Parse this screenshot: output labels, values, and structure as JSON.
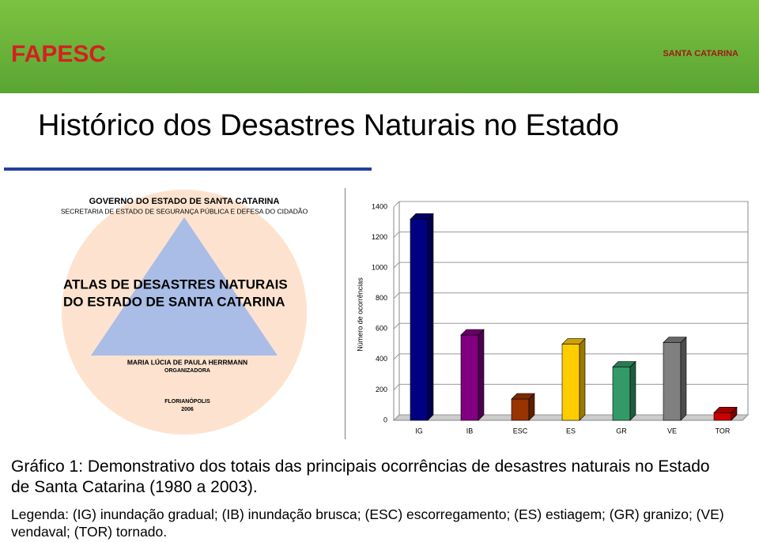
{
  "header": {
    "left_logo": "FAPESC",
    "right_logo": "SANTA CATARINA"
  },
  "title": "Histórico dos Desastres Naturais no Estado",
  "cover": {
    "government": "GOVERNO DO ESTADO DE SANTA CATARINA",
    "secretariat": "SECRETARIA DE ESTADO DE SEGURANÇA PÚBLICA E DEFESA DO CIDADÃO",
    "title_line1": "ATLAS DE DESASTRES NATURAIS",
    "title_line2": "DO ESTADO DE SANTA CATARINA",
    "author": "MARIA LÚCIA DE PAULA HERRMANN",
    "role": "ORGANIZADORA",
    "city": "FLORIANÓPOLIS",
    "year": "2006"
  },
  "chart_data": {
    "type": "bar3d",
    "y_label": "Número de ocorrências",
    "categories": [
      "IG",
      "IB",
      "ESC",
      "ES",
      "GR",
      "VE",
      "TOR"
    ],
    "values": [
      1320,
      560,
      140,
      500,
      350,
      510,
      50
    ],
    "colors": [
      "#000080",
      "#800080",
      "#993300",
      "#ffcc00",
      "#339966",
      "#808080",
      "#cc0000"
    ],
    "ylim": [
      0,
      1400
    ],
    "yticks": [
      0,
      200,
      400,
      600,
      800,
      1000,
      1200,
      1400
    ],
    "grid": true
  },
  "caption": "Gráfico 1: Demonstrativo dos totais das principais ocorrências de desastres naturais no Estado de Santa Catarina (1980 a 2003).",
  "legend_text": "Legenda: (IG) inundação gradual; (IB) inundação brusca; (ESC) escorregamento; (ES) estiagem; (GR) granizo; (VE) vendaval; (TOR) tornado."
}
